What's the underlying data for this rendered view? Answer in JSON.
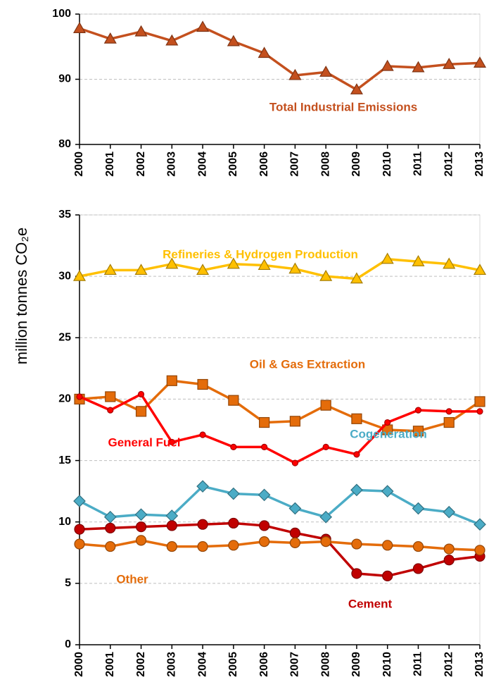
{
  "chart_data": [
    {
      "type": "line",
      "x": [
        2000,
        2001,
        2002,
        2003,
        2004,
        2005,
        2006,
        2007,
        2008,
        2009,
        2010,
        2011,
        2012,
        2013
      ],
      "xlim": [
        2000,
        2013
      ],
      "xticks": [
        2000,
        2001,
        2002,
        2003,
        2004,
        2005,
        2006,
        2007,
        2008,
        2009,
        2010,
        2011,
        2012,
        2013
      ],
      "ylim": [
        80,
        100
      ],
      "yticks": [
        80,
        90,
        100
      ],
      "grid": true,
      "series": [
        {
          "name": "Total Industrial Emissions",
          "color": "#c4501e",
          "marker": "triangle",
          "values": [
            97.8,
            96.2,
            97.3,
            95.9,
            98.0,
            95.8,
            94.0,
            90.6,
            91.1,
            88.4,
            92.0,
            91.8,
            92.3,
            92.5
          ]
        }
      ]
    },
    {
      "type": "line",
      "ylabel": "million tonnes CO₂e",
      "x": [
        2000,
        2001,
        2002,
        2003,
        2004,
        2005,
        2006,
        2007,
        2008,
        2009,
        2010,
        2011,
        2012,
        2013
      ],
      "xlim": [
        2000,
        2013
      ],
      "xticks": [
        2000,
        2001,
        2002,
        2003,
        2004,
        2005,
        2006,
        2007,
        2008,
        2009,
        2010,
        2011,
        2012,
        2013
      ],
      "ylim": [
        0,
        35
      ],
      "yticks": [
        0,
        5,
        10,
        15,
        20,
        25,
        30,
        35
      ],
      "grid": true,
      "series": [
        {
          "name": "Refineries & Hydrogen Production",
          "color": "#ffc000",
          "marker": "triangle",
          "values": [
            30.0,
            30.5,
            30.5,
            31.0,
            30.5,
            31.0,
            30.9,
            30.6,
            30.0,
            29.8,
            31.4,
            31.2,
            31.0,
            30.5
          ]
        },
        {
          "name": "Oil & Gas Extraction",
          "color": "#e46c0a",
          "marker": "square",
          "values": [
            20.0,
            20.2,
            19.0,
            21.5,
            21.2,
            19.9,
            18.1,
            18.2,
            19.5,
            18.4,
            17.5,
            17.4,
            18.1,
            19.8
          ]
        },
        {
          "name": "General Fuel",
          "color": "#ff0000",
          "marker": "dot",
          "values": [
            20.2,
            19.1,
            20.4,
            16.5,
            17.1,
            16.1,
            16.1,
            14.8,
            16.1,
            15.5,
            18.1,
            19.1,
            19.0,
            19.0
          ]
        },
        {
          "name": "Cogeneration",
          "color": "#4bacc6",
          "marker": "diamond",
          "values": [
            11.7,
            10.4,
            10.6,
            10.5,
            12.9,
            12.3,
            12.2,
            11.1,
            10.4,
            12.6,
            12.5,
            11.1,
            10.8,
            9.8
          ]
        },
        {
          "name": "Cement",
          "color": "#c00000",
          "marker": "circle",
          "values": [
            9.4,
            9.5,
            9.6,
            9.7,
            9.8,
            9.9,
            9.7,
            9.1,
            8.6,
            5.8,
            5.6,
            6.2,
            6.9,
            7.2
          ]
        },
        {
          "name": "Other",
          "color": "#e46c0a",
          "marker": "circle",
          "values": [
            8.2,
            8.0,
            8.5,
            8.0,
            8.0,
            8.1,
            8.4,
            8.3,
            8.4,
            8.2,
            8.1,
            8.0,
            7.8,
            7.7
          ]
        }
      ]
    }
  ]
}
